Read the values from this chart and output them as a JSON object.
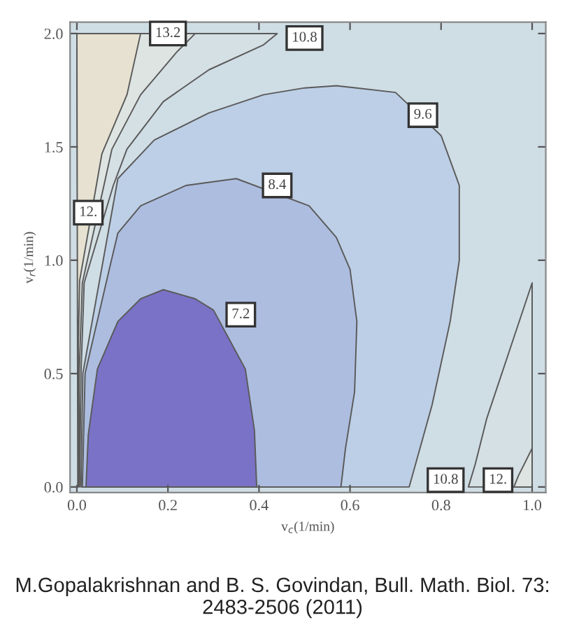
{
  "chart_data": {
    "type": "area",
    "xlabel": "v$_{c}$(1/min)",
    "ylabel": "v$_{r}$(1/min)",
    "xlim": [
      -0.015,
      1.03
    ],
    "ylim": [
      -0.025,
      2.05
    ],
    "xticks": [
      {
        "value": 0,
        "label": "0.0"
      },
      0.2,
      0.4,
      0.6,
      0.8,
      {
        "value": 1,
        "label": "1.0"
      }
    ],
    "yticks": [
      {
        "value": 0,
        "label": "0.0"
      },
      0.5,
      {
        "value": 1,
        "label": "1.0"
      },
      1.5,
      {
        "value": 2,
        "label": "2.0"
      }
    ],
    "grid": false,
    "legend": false,
    "series": [
      {
        "color": "#bdcfe6",
        "x": [
          0.009,
          0.013,
          0.09,
          0.17,
          0.29,
          0.41,
          0.5,
          0.57,
          0.7,
          0.8,
          0.84,
          0.84,
          0.82,
          0.78,
          0.73
        ],
        "values": [
          0.0,
          0.5,
          1.36,
          1.53,
          1.65,
          1.73,
          1.76,
          1.77,
          1.74,
          1.55,
          1.33,
          1.0,
          0.73,
          0.36,
          0.0
        ]
      },
      {
        "color": "#adbde0",
        "x": [
          0.012,
          0.018,
          0.07,
          0.09,
          0.14,
          0.24,
          0.35,
          0.51,
          0.57,
          0.6,
          0.615,
          0.61,
          0.59,
          0.58
        ],
        "values": [
          0.0,
          0.5,
          0.95,
          1.12,
          1.24,
          1.33,
          1.36,
          1.24,
          1.1,
          0.96,
          0.73,
          0.42,
          0.17,
          0.0
        ]
      },
      {
        "color": "#7a72c6",
        "x": [
          0.02,
          0.025,
          0.045,
          0.09,
          0.14,
          0.19,
          0.26,
          0.3,
          0.37,
          0.39,
          0.395
        ],
        "values": [
          0.0,
          0.23,
          0.52,
          0.73,
          0.83,
          0.87,
          0.83,
          0.78,
          0.52,
          0.25,
          0.0
        ]
      },
      {
        "color": "#d5e0e4",
        "x": [
          0.006,
          0.009,
          0.016,
          0.08,
          0.11,
          0.19,
          0.29,
          0.41,
          0.44,
          0.0
        ],
        "values": [
          0.0,
          0.5,
          0.9,
          1.33,
          1.49,
          1.7,
          1.84,
          1.95,
          2.0,
          2.0
        ]
      },
      {
        "color": "#dde4e2",
        "x": [
          0.004,
          0.005,
          0.012,
          0.077,
          0.14,
          0.22,
          0.26,
          0.0
        ],
        "values": [
          0.0,
          0.5,
          0.9,
          1.49,
          1.73,
          1.92,
          2.0,
          2.0
        ]
      },
      {
        "color": "#e6e1d0",
        "x": [
          0.002,
          0.002,
          0.006,
          0.055,
          0.11,
          0.14,
          0.0
        ],
        "values": [
          0.0,
          0.5,
          0.91,
          1.47,
          1.73,
          2.0,
          2.0
        ]
      },
      {
        "color": "#d5e0e4",
        "x": [
          1.0,
          0.95,
          0.9,
          0.875,
          0.86,
          1.0
        ],
        "values": [
          0.9,
          0.6,
          0.3,
          0.1,
          0.0,
          0.0
        ]
      },
      {
        "color": "#dde4e2",
        "x": [
          1.0,
          0.97,
          0.96,
          1.0
        ],
        "values": [
          0.17,
          0.05,
          0.0,
          0.0
        ]
      }
    ],
    "annotations": [
      {
        "text": "13.2",
        "x": 0.2,
        "y": 2.0
      },
      {
        "text": "10.8",
        "x": 0.5,
        "y": 1.98
      },
      {
        "text": "9.6",
        "x": 0.76,
        "y": 1.64
      },
      {
        "text": "8.4",
        "x": 0.44,
        "y": 1.33
      },
      {
        "text": "12.",
        "x": 0.025,
        "y": 1.21
      },
      {
        "text": "7.2",
        "x": 0.36,
        "y": 0.76
      },
      {
        "text": "10.8",
        "x": 0.81,
        "y": 0.03
      },
      {
        "text": "12.",
        "x": 0.925,
        "y": 0.03
      },
      "M.Gopalakrishnan and B. S. Govindan, Bull. Math. Biol. 73: 2483-2506 (2011)"
    ]
  }
}
